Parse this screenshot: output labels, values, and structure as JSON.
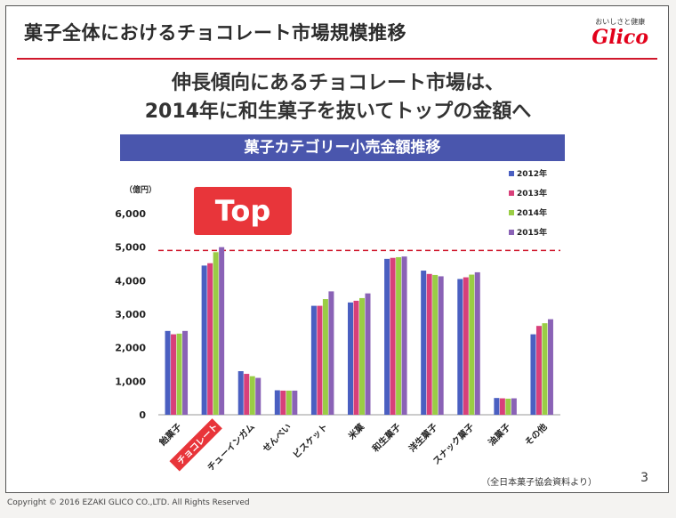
{
  "slide": {
    "title": "菓子全体におけるチョコレート市場規模推移",
    "logo_tagline": "おいしさと健康",
    "logo_word": "Glico",
    "headline_line1": "伸長傾向にあるチョコレート市場は、",
    "headline_line2": "2014年に和生菓子を抜いてトップの金額へ",
    "chart_banner": "菓子カテゴリー小売金額推移",
    "top_badge": "Top",
    "source": "（全日本菓子協会資料より）",
    "page_number": "3",
    "copyright": "Copyright © 2016 EZAKI GLICO CO.,LTD. All Rights Reserved"
  },
  "colors": {
    "accent_red": "#d0182c",
    "banner_blue": "#4a56ad",
    "s2012": "#4a5fc1",
    "s2013": "#d8407a",
    "s2014": "#9acd45",
    "s2015": "#8a62b6"
  },
  "chart_data": {
    "type": "bar",
    "title": "菓子カテゴリー小売金額推移",
    "ylabel": "（億円）",
    "ylim": [
      0,
      6000
    ],
    "yticks": [
      0,
      1000,
      2000,
      3000,
      4000,
      5000,
      6000
    ],
    "ytick_labels": [
      "0",
      "1,000",
      "2,000",
      "3,000",
      "4,000",
      "5,000",
      "6,000"
    ],
    "reference_line": 4900,
    "categories": [
      "飴菓子",
      "チョコレート",
      "チューインガム",
      "せんべい",
      "ビスケット",
      "米菓",
      "和生菓子",
      "洋生菓子",
      "スナック菓子",
      "油菓子",
      "その他"
    ],
    "highlight_category": "チョコレート",
    "legend_position": "top-right",
    "series": [
      {
        "name": "2012年",
        "values": [
          2500,
          4450,
          1300,
          730,
          3250,
          3350,
          4650,
          4300,
          4050,
          500,
          2400
        ]
      },
      {
        "name": "2013年",
        "values": [
          2400,
          4520,
          1220,
          720,
          3250,
          3400,
          4680,
          4200,
          4100,
          490,
          2650
        ]
      },
      {
        "name": "2014年",
        "values": [
          2420,
          4850,
          1150,
          720,
          3450,
          3480,
          4700,
          4170,
          4180,
          480,
          2730
        ]
      },
      {
        "name": "2015年",
        "values": [
          2500,
          5000,
          1100,
          720,
          3680,
          3620,
          4720,
          4130,
          4250,
          490,
          2850
        ]
      }
    ]
  }
}
